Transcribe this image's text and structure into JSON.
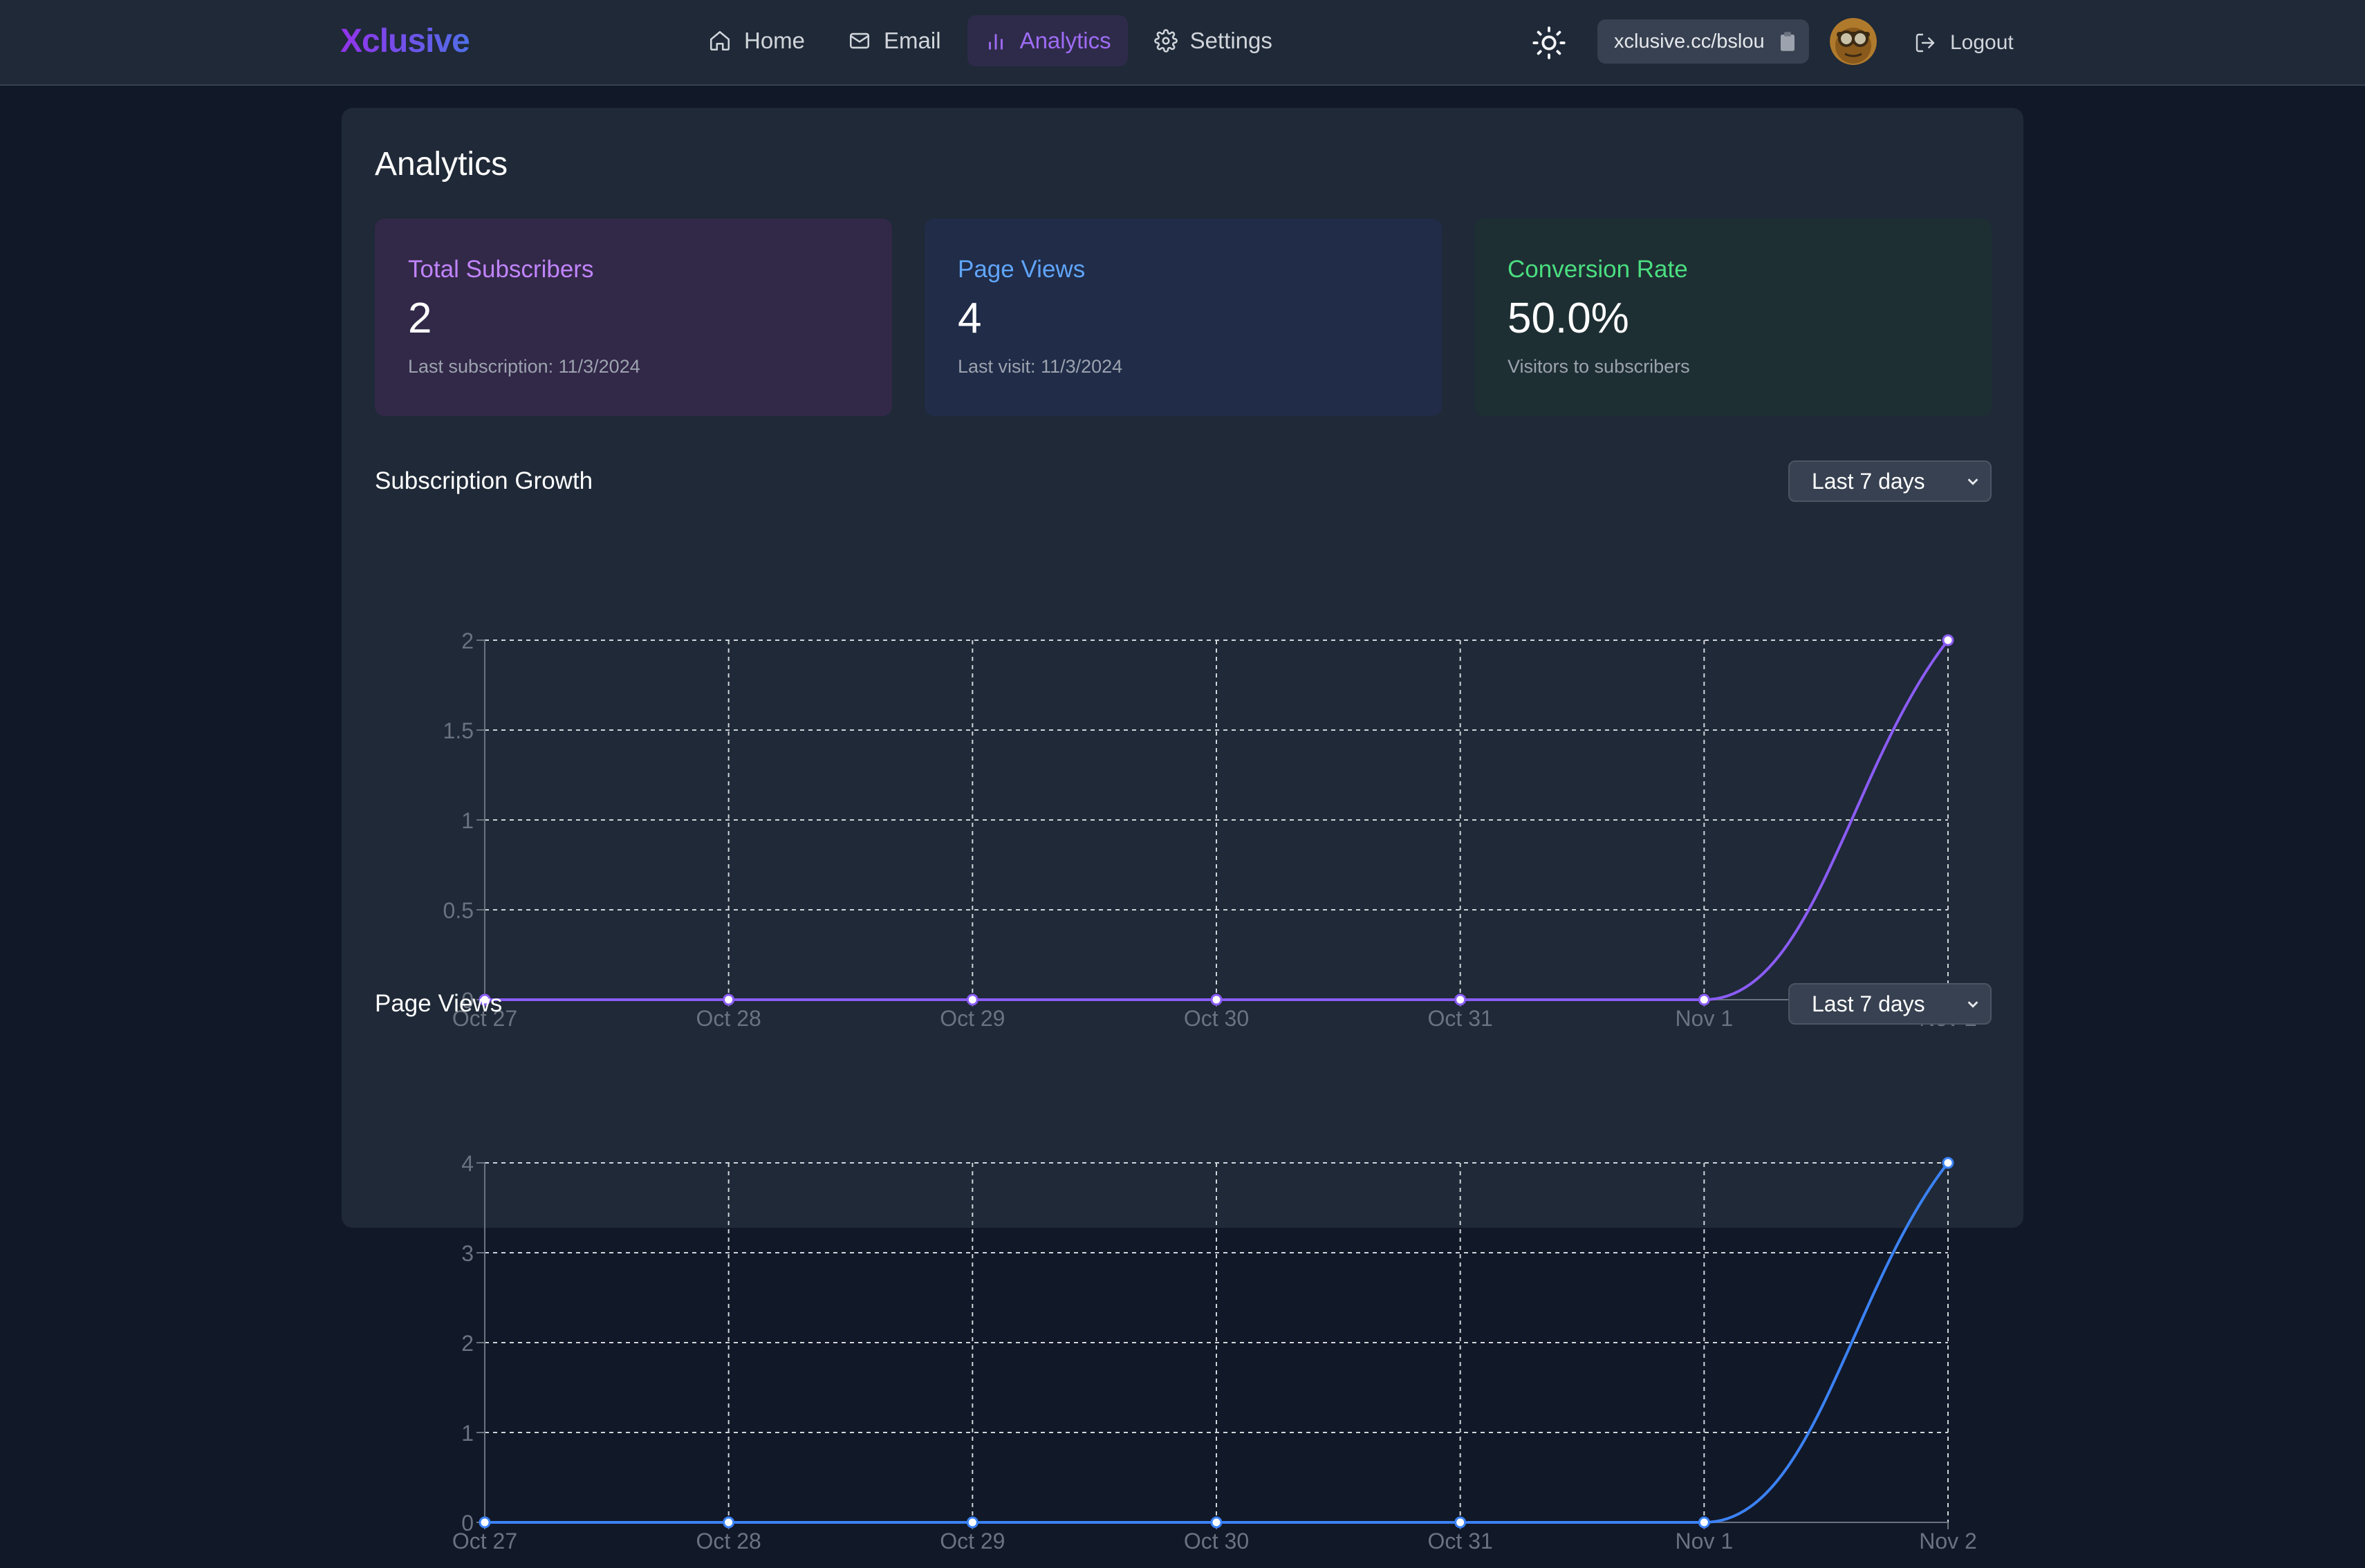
{
  "app": {
    "brand": "Xclusive",
    "accent": "#9333ea"
  },
  "nav": {
    "items": [
      {
        "label": "Home",
        "icon": "home-icon",
        "active": false
      },
      {
        "label": "Email",
        "icon": "mail-icon",
        "active": false
      },
      {
        "label": "Analytics",
        "icon": "bar-chart-icon",
        "active": true
      },
      {
        "label": "Settings",
        "icon": "gear-icon",
        "active": false
      }
    ]
  },
  "header": {
    "theme_icon": "sun-icon",
    "profile_url": "xclusive.cc/bslou",
    "copy_icon": "clipboard-icon",
    "logout_label": "Logout"
  },
  "main": {
    "title": "Analytics",
    "stats": [
      {
        "label": "Total Subscribers",
        "value": "2",
        "sub": "Last subscription: 11/3/2024",
        "color": "#c084fc"
      },
      {
        "label": "Page Views",
        "value": "4",
        "sub": "Last visit: 11/3/2024",
        "color": "#60a5fa"
      },
      {
        "label": "Conversion Rate",
        "value": "50.0%",
        "sub": "Visitors to subscribers",
        "color": "#4ade80"
      }
    ],
    "subscription_section": {
      "title": "Subscription Growth",
      "range": "Last 7 days"
    },
    "views_section": {
      "title": "Page Views",
      "range": "Last 7 days"
    }
  },
  "chart_data": [
    {
      "type": "line",
      "title": "Subscription Growth",
      "categories": [
        "Oct 27",
        "Oct 28",
        "Oct 29",
        "Oct 30",
        "Oct 31",
        "Nov 1",
        "Nov 2"
      ],
      "values": [
        0,
        0,
        0,
        0,
        0,
        0,
        2
      ],
      "ylim": [
        0,
        2
      ],
      "yticks": [
        0,
        0.5,
        1,
        1.5,
        2
      ],
      "grid": true,
      "color": "#8b5cf6"
    },
    {
      "type": "line",
      "title": "Page Views",
      "categories": [
        "Oct 27",
        "Oct 28",
        "Oct 29",
        "Oct 30",
        "Oct 31",
        "Nov 1",
        "Nov 2"
      ],
      "values": [
        0,
        0,
        0,
        0,
        0,
        0,
        4
      ],
      "ylim": [
        0,
        4
      ],
      "yticks": [
        0,
        1,
        2,
        3,
        4
      ],
      "grid": true,
      "color": "#3b82f6"
    }
  ]
}
